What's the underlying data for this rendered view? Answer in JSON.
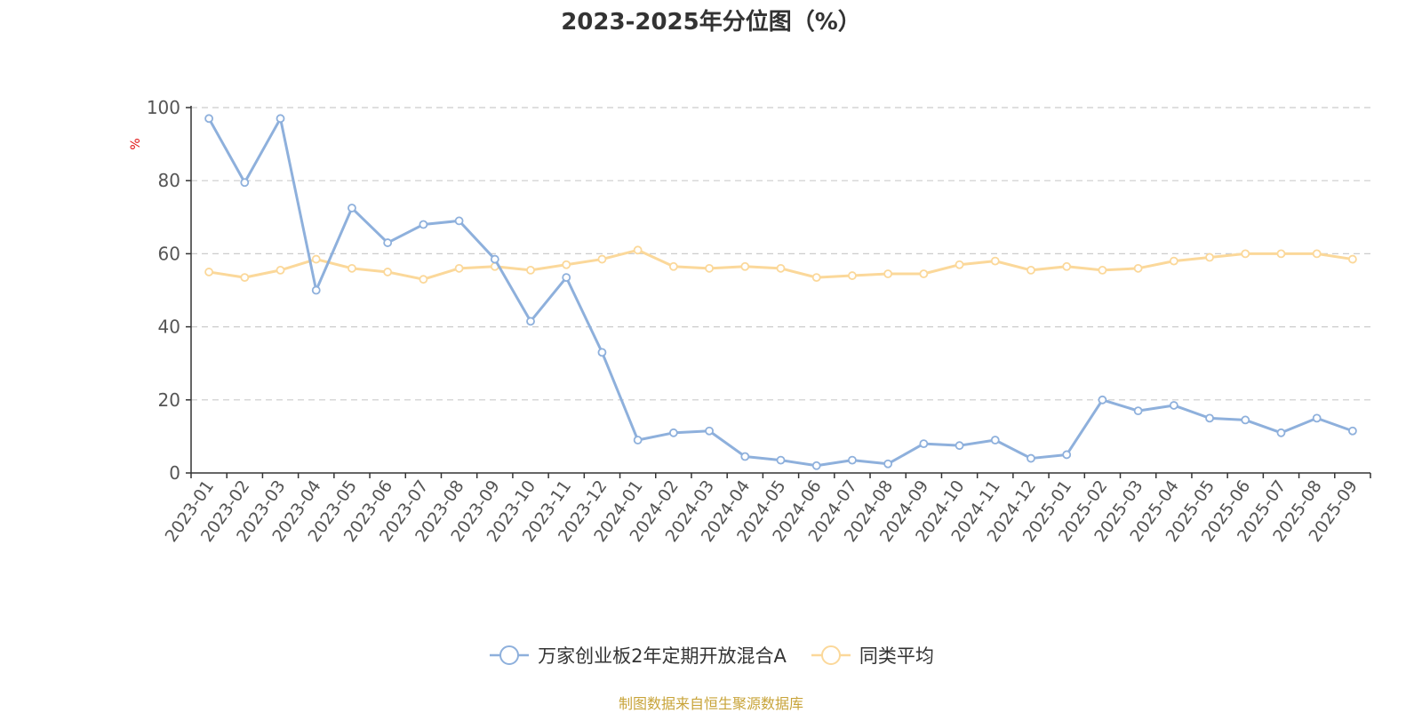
{
  "chart_data": {
    "type": "line",
    "title": "2023-2025年分位图（%）",
    "ylabel": "%",
    "xlabel": "",
    "ylim": [
      0,
      100
    ],
    "yticks": [
      0,
      20,
      40,
      60,
      80,
      100
    ],
    "grid": true,
    "legend_position": "bottom-center",
    "categories": [
      "2023-01",
      "2023-02",
      "2023-03",
      "2023-04",
      "2023-05",
      "2023-06",
      "2023-07",
      "2023-08",
      "2023-09",
      "2023-10",
      "2023-11",
      "2023-12",
      "2024-01",
      "2024-02",
      "2024-03",
      "2024-04",
      "2024-05",
      "2024-06",
      "2024-07",
      "2024-08",
      "2024-09",
      "2024-10",
      "2024-11",
      "2024-12",
      "2025-01",
      "2025-02",
      "2025-03",
      "2025-04",
      "2025-05",
      "2025-06",
      "2025-07",
      "2025-08",
      "2025-09"
    ],
    "series": [
      {
        "name": "万家创业板2年定期开放混合A",
        "color": "#8eb0dc",
        "values": [
          97,
          79.5,
          97,
          50,
          72.5,
          63,
          68,
          69,
          58.5,
          41.5,
          53.5,
          33,
          9,
          11,
          11.5,
          4.5,
          3.5,
          2,
          3.5,
          2.5,
          8,
          7.5,
          9,
          4,
          5,
          20,
          17,
          18.5,
          15,
          14.5,
          11,
          15,
          11.5
        ]
      },
      {
        "name": "同类平均",
        "color": "#fbd89a",
        "values": [
          55,
          53.5,
          55.5,
          58.5,
          56,
          55,
          53,
          56,
          56.5,
          55.5,
          57,
          58.5,
          61,
          56.5,
          56,
          56.5,
          56,
          53.5,
          54,
          54.5,
          54.5,
          57,
          58,
          55.5,
          56.5,
          55.5,
          56,
          58,
          59,
          60,
          60,
          60,
          58.5
        ]
      }
    ]
  },
  "source_note": "制图数据来自恒生聚源数据库"
}
